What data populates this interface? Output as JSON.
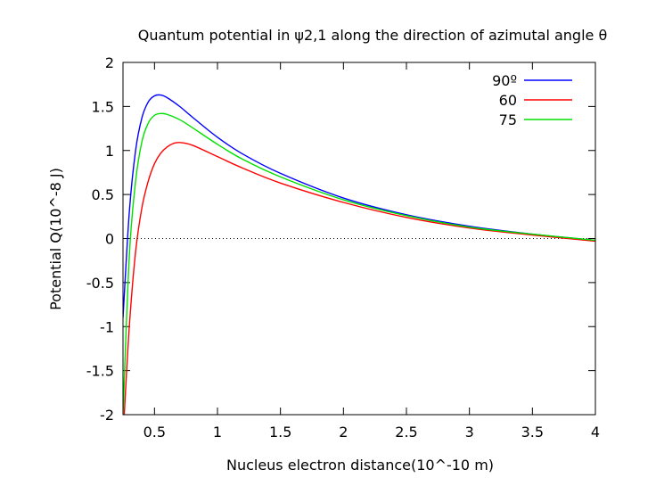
{
  "chart_data": {
    "type": "line",
    "title": "Quantum potential in ψ2,1 along the direction of azimutal angle  θ",
    "xlabel": "Nucleus electron distance(10^-10 m)",
    "ylabel": "Potential Q(10^-8 J)",
    "xlim": [
      0.25,
      4
    ],
    "ylim": [
      -2,
      2
    ],
    "x_ticks": [
      0.5,
      1,
      1.5,
      2,
      2.5,
      3,
      3.5,
      4
    ],
    "x_tick_labels": [
      "0.5",
      "1",
      "1.5",
      "2",
      "2.5",
      "3",
      "3.5",
      "4"
    ],
    "y_ticks": [
      -2,
      -1.5,
      -1,
      -0.5,
      0,
      0.5,
      1,
      1.5,
      2
    ],
    "y_tick_labels": [
      "-2",
      "-1.5",
      "-1",
      "-0.5",
      "0",
      "0.5",
      "1",
      "1.5",
      "2"
    ],
    "grid": false,
    "zero_line": "dotted",
    "legend_position": "top-right",
    "series": [
      {
        "name": "90º",
        "color": "#0000ff",
        "x": [
          0.25,
          0.3,
          0.35,
          0.4,
          0.45,
          0.5,
          0.55,
          0.6,
          0.7,
          0.8,
          1.0,
          1.2,
          1.5,
          2.0,
          2.5,
          3.0,
          3.5,
          4.0
        ],
        "y": [
          -0.9,
          0.3,
          1.0,
          1.37,
          1.55,
          1.62,
          1.63,
          1.6,
          1.5,
          1.38,
          1.15,
          0.96,
          0.74,
          0.46,
          0.27,
          0.14,
          0.05,
          -0.02
        ]
      },
      {
        "name": "60",
        "color": "#ff0000",
        "x": [
          0.26,
          0.3,
          0.35,
          0.4,
          0.45,
          0.5,
          0.55,
          0.6,
          0.65,
          0.7,
          0.8,
          1.0,
          1.2,
          1.5,
          2.0,
          2.5,
          3.0,
          3.5,
          4.0
        ],
        "y": [
          -2.0,
          -1.0,
          -0.15,
          0.35,
          0.65,
          0.85,
          0.97,
          1.04,
          1.08,
          1.09,
          1.06,
          0.93,
          0.8,
          0.63,
          0.41,
          0.24,
          0.12,
          0.04,
          -0.03
        ]
      },
      {
        "name": "75",
        "color": "#00e000",
        "x": [
          0.25,
          0.3,
          0.35,
          0.4,
          0.45,
          0.5,
          0.55,
          0.6,
          0.7,
          0.8,
          1.0,
          1.2,
          1.5,
          2.0,
          2.5,
          3.0,
          3.5,
          4.0
        ],
        "y": [
          -2.0,
          -0.2,
          0.65,
          1.1,
          1.31,
          1.4,
          1.42,
          1.41,
          1.35,
          1.26,
          1.07,
          0.9,
          0.7,
          0.44,
          0.26,
          0.13,
          0.05,
          -0.02
        ]
      }
    ]
  }
}
